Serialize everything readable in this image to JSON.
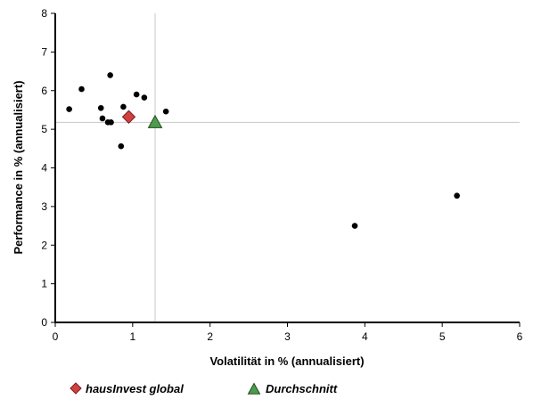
{
  "chart_data": {
    "type": "scatter",
    "title": "",
    "xlabel": "Volatilität in % (annualisiert)",
    "ylabel": "Performance in % (annualisiert)",
    "xlim": [
      0,
      6
    ],
    "ylim": [
      0,
      8
    ],
    "x_ticks": [
      "0",
      "1",
      "2",
      "3",
      "4",
      "5",
      "6"
    ],
    "y_ticks": [
      "0",
      "1",
      "2",
      "3",
      "4",
      "5",
      "6",
      "7",
      "8"
    ],
    "grid": false,
    "reference_lines": {
      "vertical_x": 1.29,
      "horizontal_y": 5.18,
      "color": "#c8c8c8"
    },
    "legend_position": "bottom-left",
    "series": [
      {
        "marker": "circle",
        "color": "#000000",
        "points": [
          {
            "x": 0.18,
            "y": 5.52
          },
          {
            "x": 0.34,
            "y": 6.04
          },
          {
            "x": 0.59,
            "y": 5.55
          },
          {
            "x": 0.61,
            "y": 5.28
          },
          {
            "x": 0.68,
            "y": 5.18
          },
          {
            "x": 0.72,
            "y": 5.18
          },
          {
            "x": 0.71,
            "y": 6.4
          },
          {
            "x": 0.85,
            "y": 4.56
          },
          {
            "x": 0.88,
            "y": 5.58
          },
          {
            "x": 1.05,
            "y": 5.9
          },
          {
            "x": 1.15,
            "y": 5.82
          },
          {
            "x": 1.43,
            "y": 5.46
          },
          {
            "x": 3.87,
            "y": 2.5
          },
          {
            "x": 5.19,
            "y": 3.28
          }
        ]
      },
      {
        "name": "hausInvest global",
        "marker": "diamond",
        "color": "#d04040",
        "points": [
          {
            "x": 0.95,
            "y": 5.32
          }
        ]
      },
      {
        "name": "Durchschnitt",
        "marker": "triangle",
        "color": "#4e9a4e",
        "points": [
          {
            "x": 1.29,
            "y": 5.18
          }
        ]
      }
    ]
  }
}
